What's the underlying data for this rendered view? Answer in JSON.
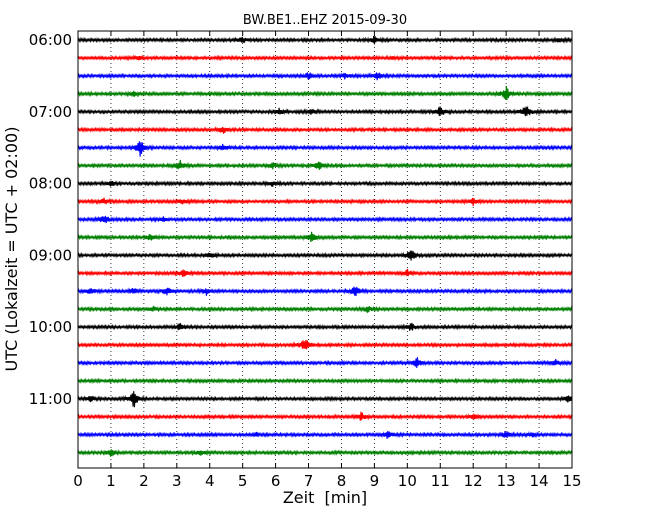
{
  "chart_data": {
    "type": "line",
    "title": "BW.BE1..EHZ 2015-09-30",
    "xlabel": "Zeit  [min]",
    "ylabel": "UTC (Lokalzeit = UTC + 02:00)",
    "xlim": [
      0,
      15
    ],
    "x_ticks": [
      "0",
      "1",
      "2",
      "3",
      "4",
      "5",
      "6",
      "7",
      "8",
      "9",
      "10",
      "11",
      "12",
      "13",
      "14",
      "15"
    ],
    "y_tick_labels": [
      "06:00",
      "07:00",
      "08:00",
      "09:00",
      "10:00",
      "11:00"
    ],
    "grid": "vertical dotted",
    "trace_colors": [
      "#000000",
      "#ff0000",
      "#0000ff",
      "#008000"
    ],
    "trace_interval_min": 15,
    "traces": [
      {
        "start": "06:00",
        "events": [
          [
            5.0,
            0.35
          ],
          [
            9.0,
            0.45
          ],
          [
            14.6,
            0.2
          ]
        ]
      },
      {
        "start": "06:15",
        "events": [
          [
            1.8,
            0.35
          ],
          [
            9.6,
            0.15
          ]
        ]
      },
      {
        "start": "06:30",
        "events": [
          [
            7.0,
            0.45
          ],
          [
            8.1,
            0.4
          ],
          [
            9.1,
            0.5
          ]
        ]
      },
      {
        "start": "06:45",
        "events": [
          [
            1.7,
            0.25
          ],
          [
            13.0,
            0.9
          ]
        ]
      },
      {
        "start": "07:00",
        "events": [
          [
            6.1,
            0.35
          ],
          [
            7.1,
            0.3
          ],
          [
            11.0,
            0.7
          ],
          [
            13.6,
            1.0
          ]
        ]
      },
      {
        "start": "07:15",
        "events": [
          [
            4.4,
            0.45
          ]
        ]
      },
      {
        "start": "07:30",
        "events": [
          [
            1.9,
            1.2
          ],
          [
            4.4,
            0.35
          ]
        ]
      },
      {
        "start": "07:45",
        "events": [
          [
            3.1,
            0.65
          ],
          [
            5.9,
            0.4
          ],
          [
            7.3,
            0.55
          ]
        ]
      },
      {
        "start": "08:00",
        "events": [
          [
            1.0,
            0.3
          ],
          [
            5.9,
            0.3
          ]
        ]
      },
      {
        "start": "08:15",
        "events": [
          [
            0.8,
            0.35
          ],
          [
            3.2,
            0.35
          ],
          [
            12.0,
            0.45
          ]
        ]
      },
      {
        "start": "08:30",
        "events": [
          [
            0.8,
            0.6
          ],
          [
            2.6,
            0.3
          ]
        ]
      },
      {
        "start": "08:45",
        "events": [
          [
            2.2,
            0.45
          ],
          [
            7.1,
            0.6
          ]
        ]
      },
      {
        "start": "09:00",
        "events": [
          [
            4.0,
            0.3
          ],
          [
            10.1,
            0.8
          ]
        ]
      },
      {
        "start": "09:15",
        "events": [
          [
            3.2,
            0.45
          ],
          [
            10.0,
            0.4
          ]
        ]
      },
      {
        "start": "09:30",
        "events": [
          [
            0.4,
            0.4
          ],
          [
            1.7,
            0.4
          ],
          [
            2.7,
            0.55
          ],
          [
            3.9,
            0.45
          ],
          [
            8.4,
            0.8
          ]
        ]
      },
      {
        "start": "09:45",
        "events": [
          [
            2.3,
            0.3
          ],
          [
            8.8,
            0.35
          ]
        ]
      },
      {
        "start": "10:00",
        "events": [
          [
            3.1,
            0.5
          ],
          [
            10.1,
            0.55
          ]
        ]
      },
      {
        "start": "10:15",
        "events": [
          [
            6.9,
            0.85
          ]
        ]
      },
      {
        "start": "10:30",
        "events": [
          [
            10.3,
            0.6
          ],
          [
            14.5,
            0.35
          ]
        ]
      },
      {
        "start": "10:45",
        "events": []
      },
      {
        "start": "11:00",
        "events": [
          [
            0.4,
            0.35
          ],
          [
            1.7,
            1.2
          ],
          [
            14.9,
            0.4
          ]
        ]
      },
      {
        "start": "11:15",
        "events": [
          [
            8.6,
            0.6
          ],
          [
            12.0,
            0.3
          ]
        ]
      },
      {
        "start": "11:30",
        "events": [
          [
            5.4,
            0.25
          ],
          [
            9.4,
            0.5
          ],
          [
            13.0,
            0.45
          ],
          [
            13.8,
            0.3
          ]
        ]
      },
      {
        "start": "11:45",
        "events": [
          [
            1.0,
            0.45
          ],
          [
            3.7,
            0.4
          ]
        ]
      }
    ]
  }
}
